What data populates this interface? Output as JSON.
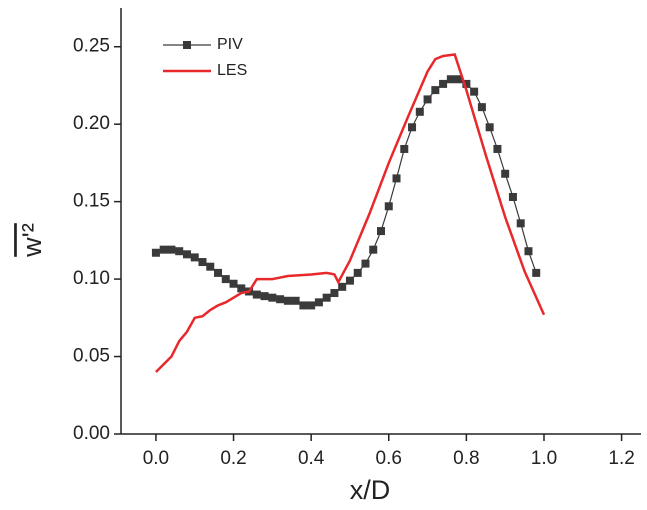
{
  "chart_data": {
    "type": "line",
    "xlabel": "x/D",
    "ylabel": "w'²",
    "xlim": [
      -0.09,
      1.25
    ],
    "ylim": [
      0,
      0.275
    ],
    "xticks": [
      {
        "value": 0,
        "label": "0.0"
      },
      0.2,
      0.4,
      0.6,
      0.8,
      {
        "value": 1,
        "label": "1.0"
      },
      1.2
    ],
    "yticks": [
      {
        "value": 0,
        "label": "0.00"
      },
      0.05,
      {
        "value": 0.1,
        "label": "0.10"
      },
      0.15,
      {
        "value": 0.2,
        "label": "0.20"
      },
      0.25
    ],
    "legend": "upper left",
    "series": [
      {
        "name": "PIV",
        "color": "#3a3a3a",
        "marker": "square",
        "x": [
          0,
          0.02,
          0.04,
          0.06,
          0.08,
          0.1,
          0.12,
          0.14,
          0.16,
          0.18,
          0.2,
          0.22,
          0.24,
          0.26,
          0.28,
          0.3,
          0.32,
          0.34,
          0.36,
          0.38,
          0.4,
          0.42,
          0.44,
          0.46,
          0.48,
          0.5,
          0.52,
          0.54,
          0.56,
          0.58,
          0.6,
          0.62,
          0.64,
          0.66,
          0.68,
          0.7,
          0.72,
          0.74,
          0.76,
          0.78,
          0.8,
          0.82,
          0.84,
          0.86,
          0.88,
          0.9,
          0.92,
          0.94,
          0.96,
          0.98
        ],
        "values": [
          0.117,
          0.119,
          0.119,
          0.118,
          0.116,
          0.114,
          0.111,
          0.108,
          0.104,
          0.1,
          0.097,
          0.094,
          0.092,
          0.09,
          0.089,
          0.088,
          0.087,
          0.086,
          0.086,
          0.083,
          0.083,
          0.085,
          0.088,
          0.091,
          0.095,
          0.099,
          0.104,
          0.11,
          0.119,
          0.131,
          0.147,
          0.165,
          0.184,
          0.198,
          0.208,
          0.216,
          0.222,
          0.226,
          0.229,
          0.229,
          0.226,
          0.221,
          0.211,
          0.198,
          0.184,
          0.168,
          0.153,
          0.136,
          0.118,
          0.104
        ]
      },
      {
        "name": "LES",
        "color": "#e8282b",
        "marker": "none",
        "x": [
          0,
          0.02,
          0.04,
          0.06,
          0.08,
          0.1,
          0.12,
          0.14,
          0.16,
          0.18,
          0.2,
          0.22,
          0.24,
          0.26,
          0.3,
          0.32,
          0.34,
          0.4,
          0.44,
          0.46,
          0.47,
          0.5,
          0.55,
          0.6,
          0.65,
          0.7,
          0.72,
          0.74,
          0.77,
          0.8,
          0.85,
          0.9,
          0.95,
          1.0
        ],
        "values": [
          0.04,
          0.045,
          0.05,
          0.06,
          0.066,
          0.075,
          0.076,
          0.08,
          0.083,
          0.085,
          0.088,
          0.091,
          0.092,
          0.1,
          0.1,
          0.101,
          0.102,
          0.103,
          0.104,
          0.103,
          0.098,
          0.112,
          0.142,
          0.175,
          0.205,
          0.234,
          0.242,
          0.244,
          0.245,
          0.222,
          0.18,
          0.14,
          0.105,
          0.077
        ]
      }
    ]
  }
}
